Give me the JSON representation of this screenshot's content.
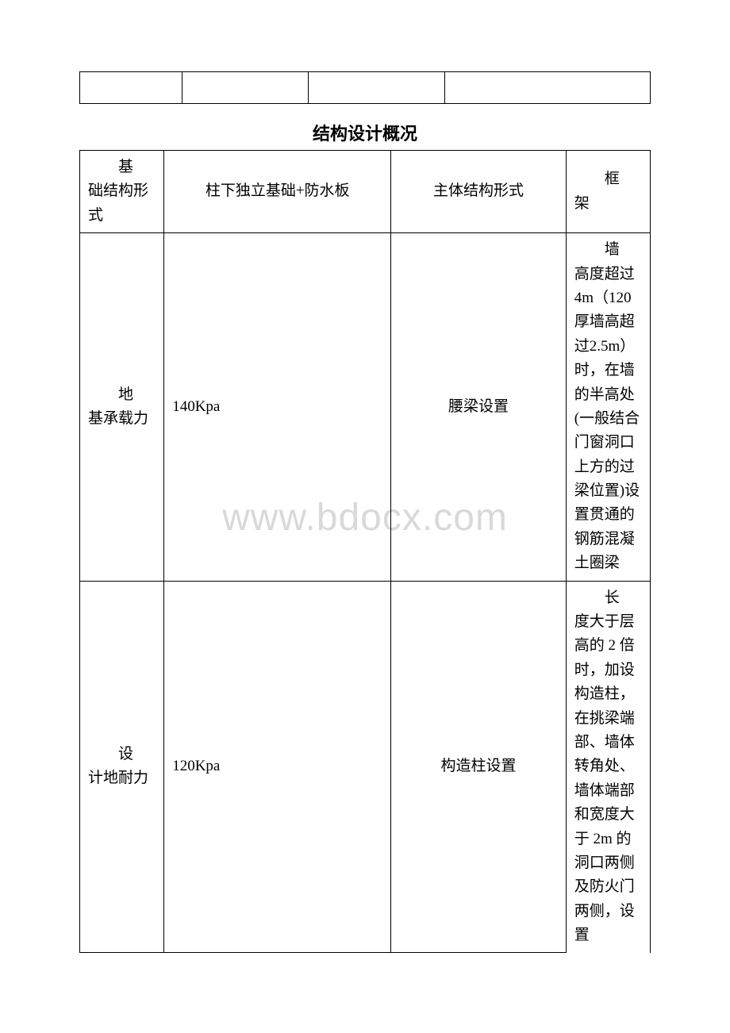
{
  "watermark": "www.bdocx.com",
  "section_title": "结构设计概况",
  "top_table": {
    "cells": [
      "",
      "",
      "",
      ""
    ]
  },
  "main_table": {
    "rows": [
      {
        "c1_a": "基",
        "c1_b": "础结构形式",
        "c2": "柱下独立基础+防水板",
        "c3": "主体结构形式",
        "c4_a": "框",
        "c4_b": "架"
      },
      {
        "c1_a": "地",
        "c1_b": "基承载力",
        "c2": "140Kpa",
        "c3": "腰梁设置",
        "c4_a": "墙",
        "c4_b": "高度超过 4m（120 厚墙高超过2.5m）时，在墙的半高处(一般结合门窗洞口上方的过梁位置)设置贯通的钢筋混凝土圈梁"
      },
      {
        "c1_a": "设",
        "c1_b": "计地耐力",
        "c2": "120Kpa",
        "c3": "构造柱设置",
        "c4_a": "长",
        "c4_b": "度大于层高的 2 倍时，加设构造柱，在挑梁端部、墙体转角处、墙体端部和宽度大于 2m 的洞口两侧及防火门两侧，设置"
      }
    ]
  },
  "styles": {
    "background": "#ffffff",
    "border_color": "#000000",
    "watermark_color": "#d9d9d9",
    "title_fontsize": 22,
    "cell_fontsize": 19,
    "watermark_fontsize": 48
  }
}
